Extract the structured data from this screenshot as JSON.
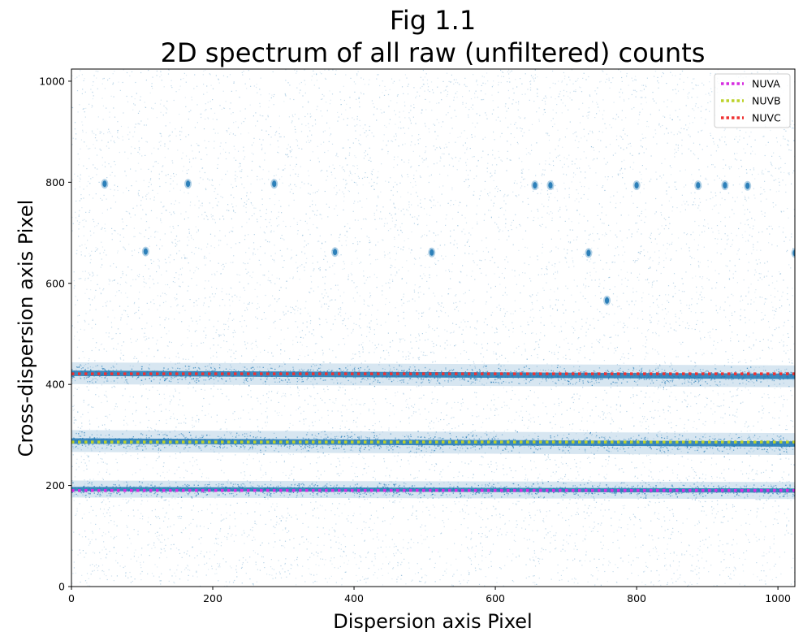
{
  "chart_data": {
    "type": "scatter",
    "title_lines": [
      "Fig 1.1",
      "2D spectrum of all raw (unfiltered) counts"
    ],
    "xlabel": "Dispersion axis Pixel",
    "ylabel": "Cross-dispersion axis Pixel",
    "xlim": [
      0,
      1024
    ],
    "ylim": [
      0,
      1024
    ],
    "xticks": [
      0,
      200,
      400,
      600,
      800,
      1000
    ],
    "yticks": [
      0,
      200,
      400,
      600,
      800,
      1000
    ],
    "grid": false,
    "legend_position": "upper right",
    "counts_color": "#1f77b4",
    "series": [
      {
        "name": "NUVA",
        "color": "#d62de0",
        "linestyle": "dotted",
        "x": [
          0,
          1024
        ],
        "y": [
          190,
          190
        ]
      },
      {
        "name": "NUVB",
        "color": "#bcd22a",
        "linestyle": "dotted",
        "x": [
          0,
          1024
        ],
        "y": [
          286,
          286
        ]
      },
      {
        "name": "NUVC",
        "color": "#ef3232",
        "linestyle": "dotted",
        "x": [
          0,
          1024
        ],
        "y": [
          421,
          421
        ]
      }
    ],
    "count_stripes": [
      {
        "x": [
          0,
          1024
        ],
        "y": [
          193,
          190
        ],
        "halfwidth": 7
      },
      {
        "x": [
          0,
          1024
        ],
        "y": [
          288,
          282
        ],
        "halfwidth": 9
      },
      {
        "x": [
          0,
          1024
        ],
        "y": [
          422,
          416
        ],
        "halfwidth": 9
      }
    ],
    "hot_spots": [
      {
        "x": 47,
        "y": 797
      },
      {
        "x": 165,
        "y": 797
      },
      {
        "x": 287,
        "y": 797
      },
      {
        "x": 656,
        "y": 794
      },
      {
        "x": 678,
        "y": 794
      },
      {
        "x": 800,
        "y": 794
      },
      {
        "x": 887,
        "y": 794
      },
      {
        "x": 925,
        "y": 794
      },
      {
        "x": 957,
        "y": 793
      },
      {
        "x": 105,
        "y": 663
      },
      {
        "x": 373,
        "y": 662
      },
      {
        "x": 510,
        "y": 661
      },
      {
        "x": 732,
        "y": 660
      },
      {
        "x": 1024,
        "y": 660
      },
      {
        "x": 758,
        "y": 566
      }
    ]
  }
}
